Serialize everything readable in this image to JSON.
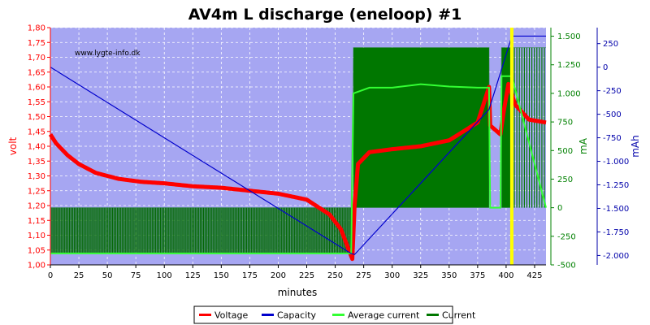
{
  "chart_data": {
    "type": "line",
    "title": "AV4m L discharge (eneloop) #1",
    "watermark": "www.lygte-info.dk",
    "xlabel": "minutes",
    "x_ticks": [
      "0",
      "25",
      "50",
      "75",
      "100",
      "125",
      "150",
      "175",
      "200",
      "225",
      "250",
      "275",
      "300",
      "325",
      "350",
      "375",
      "400",
      "425"
    ],
    "xlim": [
      0,
      435
    ],
    "axes": {
      "volt": {
        "label": "volt",
        "color": "#ff0000",
        "ylim": [
          1.0,
          1.8
        ],
        "ticks": [
          "1,00",
          "1,05",
          "1,10",
          "1,15",
          "1,20",
          "1,25",
          "1,30",
          "1,35",
          "1,40",
          "1,45",
          "1,50",
          "1,55",
          "1,60",
          "1,65",
          "1,70",
          "1,75",
          "1,80"
        ]
      },
      "mA": {
        "label": "mA",
        "color": "#008000",
        "ylim": [
          -500,
          1575
        ],
        "ticks": [
          "-500",
          "-250",
          "0",
          "250",
          "500",
          "750",
          "1.000",
          "1.250",
          "1.500"
        ]
      },
      "mAh": {
        "label": "mAh",
        "color": "#0000aa",
        "ylim": [
          -2100,
          420
        ],
        "ticks": [
          "-2.000",
          "-1.750",
          "-1.500",
          "-1.250",
          "-1.000",
          "-750",
          "-500",
          "-250",
          "0",
          "250"
        ]
      }
    },
    "series": [
      {
        "name": "Voltage",
        "color": "#ff0000",
        "axis": "volt",
        "x": [
          0,
          5,
          15,
          25,
          40,
          60,
          80,
          100,
          125,
          150,
          175,
          200,
          225,
          245,
          255,
          262,
          265,
          267,
          270,
          280,
          300,
          325,
          350,
          375,
          385,
          386,
          395,
          398,
          402,
          408,
          420,
          435
        ],
        "y": [
          1.44,
          1.41,
          1.37,
          1.34,
          1.31,
          1.29,
          1.28,
          1.275,
          1.265,
          1.26,
          1.25,
          1.24,
          1.22,
          1.17,
          1.12,
          1.05,
          1.02,
          1.2,
          1.34,
          1.38,
          1.39,
          1.4,
          1.42,
          1.48,
          1.6,
          1.47,
          1.44,
          1.52,
          1.61,
          1.54,
          1.49,
          1.48
        ]
      },
      {
        "name": "Capacity",
        "color": "#0000cc",
        "axis": "mAh",
        "x": [
          0,
          264,
          267,
          385,
          405,
          435
        ],
        "y": [
          0,
          -1980,
          -1990,
          -450,
          330,
          330
        ]
      },
      {
        "name": "Average current",
        "color": "#33ff33",
        "axis": "mA",
        "x": [
          0,
          264,
          266,
          280,
          300,
          325,
          350,
          375,
          385,
          386,
          395,
          396,
          405,
          435
        ],
        "y": [
          -400,
          -400,
          1000,
          1050,
          1050,
          1080,
          1060,
          1050,
          1050,
          0,
          0,
          1150,
          1150,
          0
        ]
      },
      {
        "name": "Current",
        "color": "#007700",
        "axis": "mA",
        "x": [
          0,
          264,
          266,
          385,
          386,
          395,
          396,
          435
        ],
        "y": [
          0,
          0,
          1400,
          1400,
          0,
          0,
          1400,
          1400
        ]
      }
    ],
    "legend": [
      "Voltage",
      "Capacity",
      "Average current",
      "Current"
    ],
    "legend_position": "bottom-center",
    "highlight_x": 405,
    "grid": true
  }
}
